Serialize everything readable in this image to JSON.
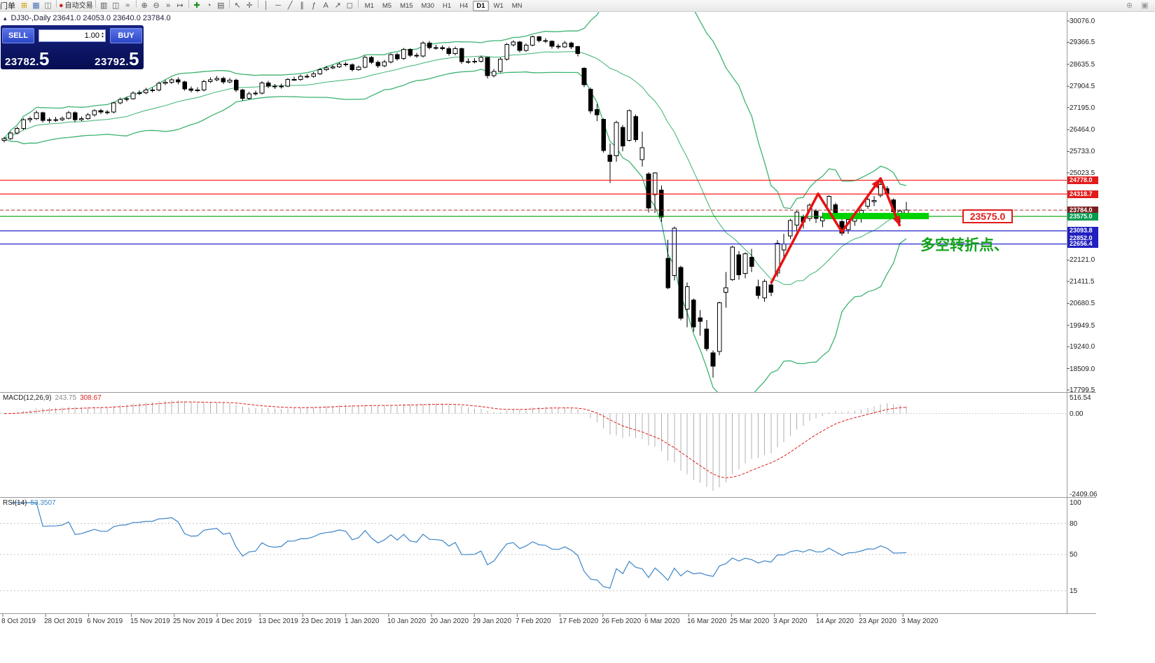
{
  "toolbar": {
    "order_label": "门单",
    "timeframes": [
      "M1",
      "M5",
      "M15",
      "M30",
      "H1",
      "H4",
      "D1",
      "W1",
      "MN"
    ],
    "active_timeframe": "D1",
    "groups": [
      {
        "items": [
          {
            "name": "new-order-icon",
            "glyph": "⊞",
            "color": "#d29b00"
          },
          {
            "name": "chart-window-icon",
            "glyph": "▦",
            "color": "#4a6fb3"
          },
          {
            "name": "market-watch-icon",
            "glyph": "◫",
            "color": "#777777"
          }
        ]
      },
      {
        "items": [
          {
            "name": "autotrading-icon",
            "glyph": "●",
            "color": "#cc2222",
            "label": "自动交易"
          }
        ]
      },
      {
        "items": [
          {
            "name": "bar-chart-icon",
            "glyph": "▥",
            "color": "#555555"
          },
          {
            "name": "candlestick-chart-icon",
            "glyph": "◫",
            "color": "#555555"
          },
          {
            "name": "line-chart-icon",
            "glyph": "≈",
            "color": "#555555"
          }
        ]
      },
      {
        "items": [
          {
            "name": "zoom-in-icon",
            "glyph": "⊕",
            "color": "#555555"
          },
          {
            "name": "zoom-out-icon",
            "glyph": "⊖",
            "color": "#555555"
          },
          {
            "name": "auto-scroll-icon",
            "glyph": "»",
            "color": "#555555"
          },
          {
            "name": "chart-shift-icon",
            "glyph": "↦",
            "color": "#555555"
          }
        ]
      },
      {
        "items": [
          {
            "name": "indicators-icon",
            "glyph": "✚",
            "color": "#1d8f1d"
          },
          {
            "name": "periods-icon",
            "glyph": "◔",
            "color": "#555555"
          },
          {
            "name": "templates-icon",
            "glyph": "▤",
            "color": "#555555"
          }
        ]
      },
      {
        "items": [
          {
            "name": "cursor-icon",
            "glyph": "↖",
            "color": "#555555"
          },
          {
            "name": "crosshair-icon",
            "glyph": "✛",
            "color": "#555555"
          }
        ]
      },
      {
        "items": [
          {
            "name": "vertical-line-icon",
            "glyph": "│",
            "color": "#555555"
          },
          {
            "name": "horizontal-line-icon",
            "glyph": "─",
            "color": "#555555"
          },
          {
            "name": "trendline-icon",
            "glyph": "╱",
            "color": "#555555"
          },
          {
            "name": "channel-icon",
            "glyph": "∥",
            "color": "#555555"
          },
          {
            "name": "fibonacci-icon",
            "glyph": "ƒ",
            "color": "#555555"
          },
          {
            "name": "text-icon",
            "glyph": "A",
            "color": "#555555"
          },
          {
            "name": "arrows-icon",
            "glyph": "↗",
            "color": "#555555"
          },
          {
            "name": "shapes-icon",
            "glyph": "◻",
            "color": "#555555"
          }
        ]
      }
    ],
    "right_icons": [
      {
        "name": "zoom-window-icon",
        "glyph": "⊕",
        "color": "#999999"
      },
      {
        "name": "dock-window-icon",
        "glyph": "▣",
        "color": "#999999"
      }
    ]
  },
  "chart_header": {
    "collapse_icon": "▴",
    "title": "DJ30-,Daily 23641.0 24053.0 23640.0 23784.0"
  },
  "trade_panel": {
    "sell_label": "SELL",
    "buy_label": "BUY",
    "volume": "1.00",
    "spin_up": "▴",
    "spin_down": "▾",
    "sell_price": "23782.",
    "sell_price_big": "5",
    "buy_price": "23792.",
    "buy_price_big": "5"
  },
  "colors": {
    "bollinger": "#3cb371",
    "resistance": "#ff1a1a",
    "support_green": "#00a000",
    "support_blue": "#2424cc",
    "current_dashed": "#b03030",
    "highlight": "#00d200",
    "zigzag": "#e81212",
    "macd_hist": "#b0b0b0",
    "macd_signal": "#e02020",
    "rsi": "#3d85c8"
  },
  "price_axis": {
    "labels": [
      "30076.0",
      "29366.5",
      "28635.5",
      "27904.5",
      "27195.0",
      "26464.0",
      "25733.0",
      "25023.5",
      "22121.0",
      "21411.5",
      "20680.5",
      "19949.5",
      "19240.0",
      "18509.0",
      "17799.5"
    ]
  },
  "levels": {
    "resistance": [
      24778.0,
      24318.7
    ],
    "support_green": 23575.0,
    "support_blue": [
      23093.8,
      22656.4
    ],
    "current_price": 23784.0,
    "badges": [
      {
        "value": "24778.0",
        "color": "#e21b1b"
      },
      {
        "value": "24318.7",
        "color": "#e21b1b"
      },
      {
        "value": "23784.0",
        "color": "#7a1f1f"
      },
      {
        "value": "23575.0",
        "color": "#009a4d"
      },
      {
        "value": "23093.8",
        "color": "#2020c0"
      },
      {
        "value": "22852.0",
        "color": "#2020c0"
      },
      {
        "value": "22656.4",
        "color": "#2020c0"
      }
    ]
  },
  "annotations": {
    "support_box_label": "23575.0",
    "turning_point_text": "多空转折点、",
    "zigzag": [
      {
        "i": 119,
        "p": 21350
      },
      {
        "i": 126.3,
        "p": 24330
      },
      {
        "i": 130,
        "p": 23060
      },
      {
        "i": 136,
        "p": 24840
      },
      {
        "i": 139,
        "p": 23250
      }
    ],
    "highlight_bar": {
      "price": 23575.0,
      "i_start": 127,
      "i_end": 143.5
    }
  },
  "indicators": {
    "macd": {
      "name": "MACD(12,26,9)",
      "value_macd": "243.75",
      "value_signal": "308.67",
      "fast": 12,
      "slow": 26,
      "signal": 9,
      "axis": {
        "max": 516.54,
        "min": -2409.06,
        "labels": [
          "516.54",
          "0.00",
          "-2409.06"
        ]
      }
    },
    "rsi": {
      "name": "RSI(14)",
      "value": "53.3507",
      "period": 14,
      "levels": [
        80,
        50,
        15
      ],
      "axis_labels": [
        "100",
        "80",
        "50",
        "15"
      ]
    }
  },
  "chart_data": {
    "type": "candlestick",
    "symbol": "DJ30-",
    "timeframe": "Daily",
    "bollinger": {
      "period": 20,
      "deviation": 2
    },
    "ohlc": [
      [
        26100,
        26220,
        26040,
        26164
      ],
      [
        26164,
        26400,
        26120,
        26346
      ],
      [
        26346,
        26560,
        26300,
        26496
      ],
      [
        26496,
        26840,
        26450,
        26787
      ],
      [
        26787,
        26900,
        26700,
        26825
      ],
      [
        26825,
        27090,
        26780,
        27025
      ],
      [
        27025,
        27060,
        26700,
        26770
      ],
      [
        26770,
        26860,
        26690,
        26788
      ],
      [
        26788,
        26880,
        26720,
        26790
      ],
      [
        26790,
        26900,
        26740,
        26833
      ],
      [
        26833,
        27080,
        26800,
        27025
      ],
      [
        27025,
        27070,
        26710,
        26788
      ],
      [
        26788,
        26900,
        26750,
        26827
      ],
      [
        26827,
        27010,
        26790,
        26958
      ],
      [
        26958,
        27140,
        26900,
        27091
      ],
      [
        27091,
        27150,
        26980,
        27046
      ],
      [
        27046,
        27120,
        26970,
        27046
      ],
      [
        27046,
        27390,
        27000,
        27347
      ],
      [
        27347,
        27520,
        27300,
        27462
      ],
      [
        27462,
        27560,
        27400,
        27493
      ],
      [
        27493,
        27740,
        27450,
        27681
      ],
      [
        27681,
        27770,
        27610,
        27691
      ],
      [
        27691,
        27850,
        27640,
        27783
      ],
      [
        27783,
        27860,
        27700,
        27782
      ],
      [
        27782,
        28060,
        27730,
        28005
      ],
      [
        28005,
        28120,
        27950,
        28036
      ],
      [
        28036,
        28180,
        27980,
        28121
      ],
      [
        28121,
        28200,
        27970,
        28045
      ],
      [
        28045,
        28090,
        27760,
        27821
      ],
      [
        27821,
        27900,
        27700,
        27766
      ],
      [
        27766,
        27870,
        27710,
        27782
      ],
      [
        27782,
        28120,
        27740,
        28066
      ],
      [
        28066,
        28200,
        28020,
        28121
      ],
      [
        28121,
        28250,
        28070,
        28164
      ],
      [
        28164,
        28220,
        27980,
        28051
      ],
      [
        28051,
        28180,
        28000,
        28110
      ],
      [
        28110,
        28150,
        27710,
        27783
      ],
      [
        27783,
        27820,
        27420,
        27503
      ],
      [
        27503,
        27720,
        27460,
        27650
      ],
      [
        27650,
        27760,
        27600,
        27677
      ],
      [
        27677,
        28070,
        27630,
        28015
      ],
      [
        28015,
        28080,
        27840,
        27910
      ],
      [
        27910,
        27980,
        27820,
        27882
      ],
      [
        27882,
        27990,
        27830,
        27911
      ],
      [
        27911,
        28180,
        27870,
        28132
      ],
      [
        28132,
        28220,
        28080,
        28135
      ],
      [
        28135,
        28290,
        28090,
        28235
      ],
      [
        28235,
        28310,
        28180,
        28239
      ],
      [
        28239,
        28380,
        28190,
        28319
      ],
      [
        28319,
        28510,
        28280,
        28455
      ],
      [
        28455,
        28580,
        28410,
        28515
      ],
      [
        28515,
        28620,
        28470,
        28551
      ],
      [
        28551,
        28700,
        28510,
        28645
      ],
      [
        28645,
        28710,
        28560,
        28621
      ],
      [
        28621,
        28670,
        28400,
        28462
      ],
      [
        28462,
        28600,
        28420,
        28538
      ],
      [
        28538,
        28920,
        28500,
        28869
      ],
      [
        28869,
        28910,
        28640,
        28703
      ],
      [
        28703,
        28760,
        28520,
        28584
      ],
      [
        28584,
        28780,
        28540,
        28712
      ],
      [
        28712,
        29010,
        28670,
        28957
      ],
      [
        28957,
        29020,
        28760,
        28823
      ],
      [
        28823,
        29180,
        28780,
        29127
      ],
      [
        29127,
        29170,
        28880,
        28939
      ],
      [
        28939,
        29020,
        28850,
        28907
      ],
      [
        28907,
        29400,
        28870,
        29348
      ],
      [
        29348,
        29410,
        29130,
        29196
      ],
      [
        29196,
        29280,
        29120,
        29186
      ],
      [
        29186,
        29260,
        29100,
        29160
      ],
      [
        29160,
        29220,
        28920,
        28990
      ],
      [
        28990,
        29220,
        28940,
        29161
      ],
      [
        29161,
        29190,
        28650,
        28722
      ],
      [
        28722,
        28830,
        28660,
        28723
      ],
      [
        28723,
        28840,
        28670,
        28734
      ],
      [
        28734,
        28920,
        28690,
        28859
      ],
      [
        28859,
        28880,
        28170,
        28256
      ],
      [
        28256,
        28480,
        28200,
        28400
      ],
      [
        28400,
        28860,
        28360,
        28808
      ],
      [
        28808,
        29340,
        28760,
        29290
      ],
      [
        29290,
        29430,
        29230,
        29380
      ],
      [
        29380,
        29410,
        29030,
        29103
      ],
      [
        29103,
        29330,
        29050,
        29277
      ],
      [
        29277,
        29590,
        29240,
        29551
      ],
      [
        29551,
        29580,
        29360,
        29423
      ],
      [
        29423,
        29500,
        29340,
        29398
      ],
      [
        29398,
        29440,
        29160,
        29233
      ],
      [
        29233,
        29320,
        29150,
        29220
      ],
      [
        29220,
        29410,
        29180,
        29348
      ],
      [
        29348,
        29390,
        29150,
        29220
      ],
      [
        29220,
        29250,
        28900,
        28992
      ],
      [
        28500,
        28540,
        27880,
        27961
      ],
      [
        27800,
        27860,
        26990,
        27081
      ],
      [
        27130,
        27320,
        26740,
        26958
      ],
      [
        26800,
        26840,
        25700,
        25766
      ],
      [
        25620,
        26000,
        24680,
        25409
      ],
      [
        25590,
        26760,
        25390,
        26703
      ],
      [
        26540,
        26620,
        25740,
        25917
      ],
      [
        26100,
        27130,
        26070,
        27090
      ],
      [
        26900,
        26970,
        26050,
        26121
      ],
      [
        25460,
        26400,
        25230,
        25865
      ],
      [
        24990,
        25050,
        23710,
        23851
      ],
      [
        24300,
        25050,
        23690,
        25018
      ],
      [
        24450,
        24600,
        23390,
        23553
      ],
      [
        22180,
        22800,
        21150,
        21201
      ],
      [
        21610,
        23240,
        21450,
        23186
      ],
      [
        21880,
        21940,
        20120,
        20188
      ],
      [
        20490,
        21380,
        19880,
        21237
      ],
      [
        20790,
        20840,
        19740,
        19899
      ],
      [
        20200,
        20450,
        19610,
        20087
      ],
      [
        19830,
        20130,
        19090,
        19174
      ],
      [
        19030,
        19120,
        18210,
        18592
      ],
      [
        19080,
        20740,
        18950,
        20705
      ],
      [
        21050,
        21720,
        20540,
        21201
      ],
      [
        21470,
        22600,
        21430,
        22552
      ],
      [
        22300,
        22420,
        21470,
        21637
      ],
      [
        21680,
        22380,
        21520,
        22327
      ],
      [
        22210,
        22490,
        21720,
        21917
      ],
      [
        21230,
        21470,
        20830,
        20944
      ],
      [
        20860,
        21480,
        20730,
        21413
      ],
      [
        21290,
        21350,
        20920,
        21053
      ],
      [
        21690,
        22780,
        21560,
        22680
      ],
      [
        22460,
        22990,
        22240,
        22654
      ],
      [
        22920,
        23500,
        22820,
        23434
      ],
      [
        23290,
        23760,
        23090,
        23719
      ],
      [
        23560,
        23630,
        23170,
        23391
      ],
      [
        23510,
        24010,
        23410,
        23950
      ],
      [
        23750,
        23820,
        23350,
        23504
      ],
      [
        23430,
        23710,
        23220,
        23538
      ],
      [
        23790,
        24270,
        23720,
        24242
      ],
      [
        23960,
        24030,
        23530,
        23651
      ],
      [
        23400,
        23520,
        22940,
        23019
      ],
      [
        23130,
        23530,
        23000,
        23476
      ],
      [
        23410,
        23740,
        23260,
        23515
      ],
      [
        23560,
        23830,
        23370,
        23775
      ],
      [
        23910,
        24180,
        23820,
        24134
      ],
      [
        24060,
        24250,
        23920,
        24102
      ],
      [
        24280,
        24765,
        24210,
        24634
      ],
      [
        24500,
        24580,
        24200,
        24346
      ],
      [
        24120,
        24170,
        23640,
        23724
      ],
      [
        23580,
        23810,
        23360,
        23749
      ],
      [
        23641,
        24053,
        23640,
        23784
      ]
    ]
  },
  "date_axis": {
    "labels": [
      "8 Oct 2019",
      "28 Oct 2019",
      "6 Nov 2019",
      "15 Nov 2019",
      "25 Nov 2019",
      "4 Dec 2019",
      "13 Dec 2019",
      "23 Dec 2019",
      "1 Jan 2020",
      "10 Jan 2020",
      "20 Jan 2020",
      "29 Jan 2020",
      "7 Feb 2020",
      "17 Feb 2020",
      "26 Feb 2020",
      "6 Mar 2020",
      "16 Mar 2020",
      "25 Mar 2020",
      "3 Apr 2020",
      "14 Apr 2020",
      "23 Apr 2020",
      "3 May 2020"
    ]
  }
}
